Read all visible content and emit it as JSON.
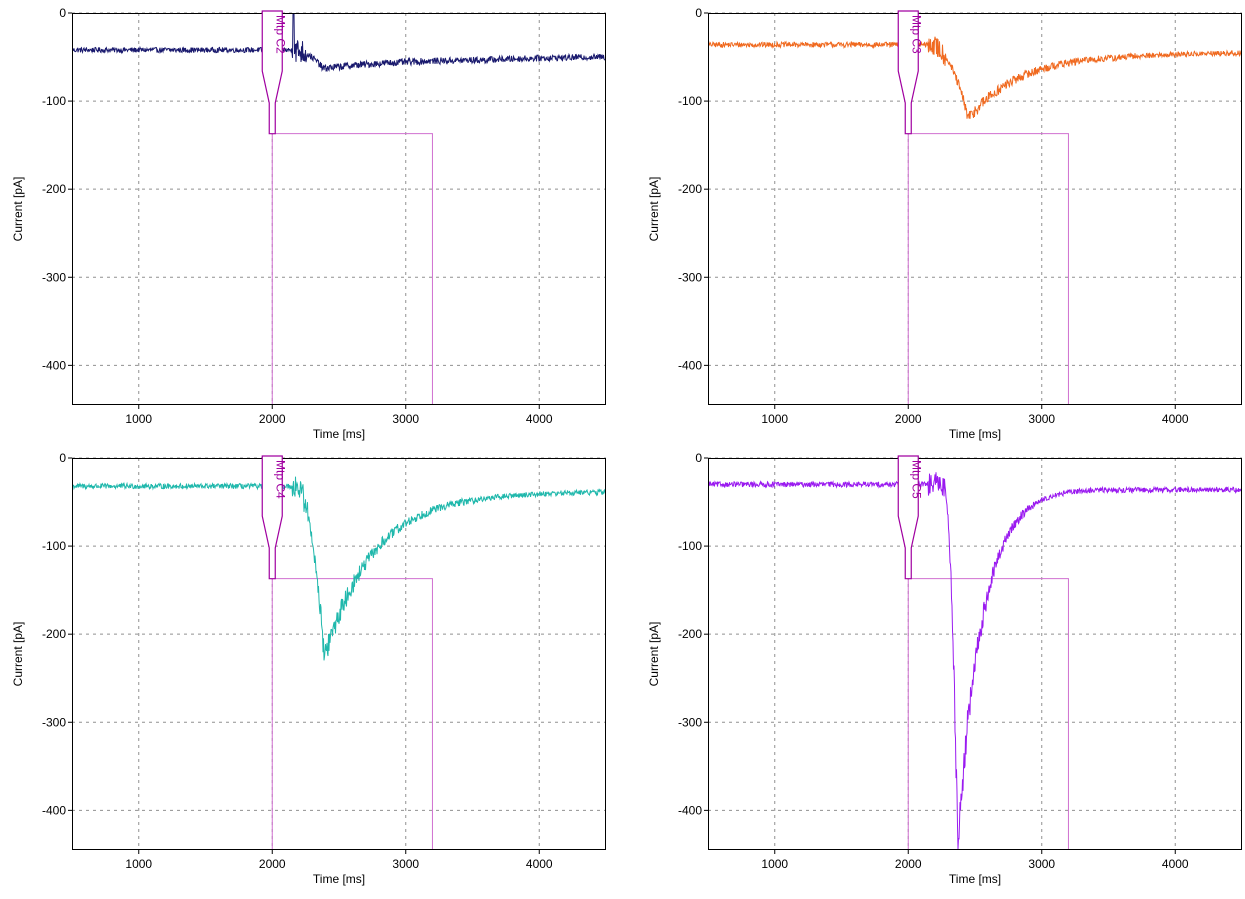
{
  "colors": {
    "marker": "#a000a0",
    "stimulus": "#d070d0",
    "grid": "#909090",
    "frame": "#000000"
  },
  "chart_data": [
    {
      "type": "line",
      "xlabel": "Time [ms]",
      "ylabel": "Current [pA]",
      "xlim": [
        500,
        4500
      ],
      "ylim": [
        -445,
        0
      ],
      "xticks": [
        1000,
        2000,
        3000,
        4000
      ],
      "yticks": [
        0,
        -100,
        -200,
        -300,
        -400
      ],
      "grid": true,
      "marker": {
        "label": "Mtp C2",
        "x": 2000
      },
      "stimulus": {
        "start": 2000,
        "end": 3200,
        "level": -137
      },
      "series": [
        {
          "color": "#1a1a6e",
          "baseline": -42,
          "noise": 3,
          "onset": 2150,
          "peak_time": 2380,
          "peak": -62,
          "decay_tau": 900,
          "final": -48,
          "burst": {
            "start": 2150,
            "end": 2260,
            "amp": 14,
            "spike": 2160,
            "spike_to": 0
          }
        }
      ]
    },
    {
      "type": "line",
      "xlabel": "Time [ms]",
      "ylabel": "Current [pA]",
      "xlim": [
        500,
        4500
      ],
      "ylim": [
        -445,
        0
      ],
      "xticks": [
        1000,
        2000,
        3000,
        4000
      ],
      "yticks": [
        0,
        -100,
        -200,
        -300,
        -400
      ],
      "grid": true,
      "marker": {
        "label": "Mtp C3",
        "x": 2000
      },
      "stimulus": {
        "start": 2000,
        "end": 3200,
        "level": -137
      },
      "series": [
        {
          "color": "#f06a20",
          "baseline": -36,
          "noise": 3,
          "onset": 2150,
          "peak_time": 2450,
          "peak": -118,
          "decay_tau": 420,
          "final": -45,
          "burst": {
            "start": 2150,
            "end": 2280,
            "amp": 12
          }
        }
      ]
    },
    {
      "type": "line",
      "xlabel": "Time [ms]",
      "ylabel": "Current [pA]",
      "xlim": [
        500,
        4500
      ],
      "ylim": [
        -445,
        0
      ],
      "xticks": [
        1000,
        2000,
        3000,
        4000
      ],
      "yticks": [
        0,
        -100,
        -200,
        -300,
        -400
      ],
      "grid": true,
      "marker": {
        "label": "Mtp C4",
        "x": 2000
      },
      "stimulus": {
        "start": 2000,
        "end": 3200,
        "level": -137
      },
      "series": [
        {
          "color": "#20b8ac",
          "baseline": -32,
          "noise": 3,
          "onset": 2170,
          "peak_time": 2390,
          "peak": -225,
          "decay_tau": 380,
          "final": -38,
          "burst": {
            "start": 2150,
            "end": 2270,
            "amp": 14
          }
        }
      ]
    },
    {
      "type": "line",
      "xlabel": "Time [ms]",
      "ylabel": "Current [pA]",
      "xlim": [
        500,
        4500
      ],
      "ylim": [
        -445,
        0
      ],
      "xticks": [
        1000,
        2000,
        3000,
        4000
      ],
      "yticks": [
        0,
        -100,
        -200,
        -300,
        -400
      ],
      "grid": true,
      "marker": {
        "label": "Mtp C5",
        "x": 2000
      },
      "stimulus": {
        "start": 2000,
        "end": 3200,
        "level": -137
      },
      "series": [
        {
          "color": "#9a1af0",
          "baseline": -30,
          "noise": 3,
          "onset": 2260,
          "peak_time": 2370,
          "peak": -435,
          "decay_tau": 190,
          "final": -36,
          "burst": {
            "start": 2150,
            "end": 2280,
            "amp": 14
          }
        }
      ]
    }
  ]
}
